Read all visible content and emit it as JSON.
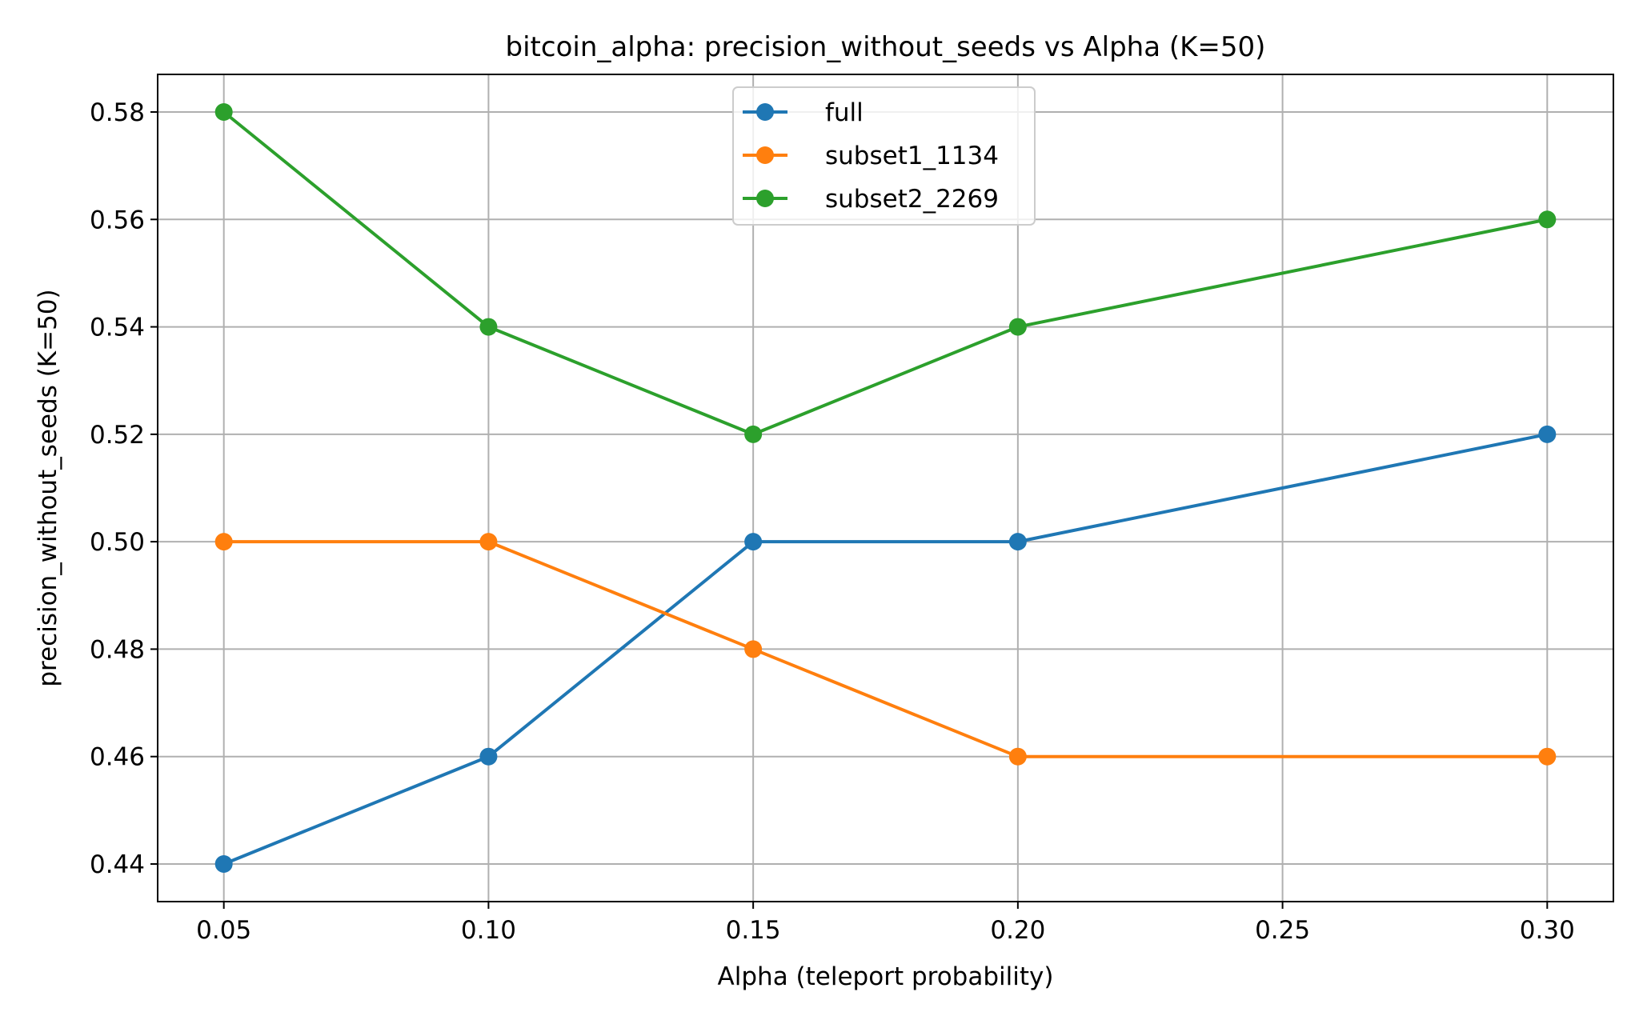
{
  "chart_data": {
    "type": "line",
    "title": "bitcoin_alpha: precision_without_seeds vs Alpha (K=50)",
    "xlabel": "Alpha (teleport probability)",
    "ylabel": "precision_without_seeds (K=50)",
    "x": [
      0.05,
      0.1,
      0.15,
      0.2,
      0.3
    ],
    "series": [
      {
        "name": "full",
        "color": "#1f77b4",
        "values": [
          0.44,
          0.46,
          0.5,
          0.5,
          0.52
        ]
      },
      {
        "name": "subset1_1134",
        "color": "#ff7f0e",
        "values": [
          0.5,
          0.5,
          0.48,
          0.46,
          0.46
        ]
      },
      {
        "name": "subset2_2269",
        "color": "#2ca02c",
        "values": [
          0.58,
          0.54,
          0.52,
          0.54,
          0.56
        ]
      }
    ],
    "xlim": [
      0.0375,
      0.3125
    ],
    "ylim": [
      0.433,
      0.587
    ],
    "xticks": [
      0.05,
      0.1,
      0.15,
      0.2,
      0.25,
      0.3
    ],
    "xtick_labels": [
      "0.05",
      "0.10",
      "0.15",
      "0.20",
      "0.25",
      "0.30"
    ],
    "yticks": [
      0.44,
      0.46,
      0.48,
      0.5,
      0.52,
      0.54,
      0.56,
      0.58
    ],
    "ytick_labels": [
      "0.44",
      "0.46",
      "0.48",
      "0.50",
      "0.52",
      "0.54",
      "0.56",
      "0.58"
    ],
    "grid": true,
    "legend_position": "upper-center"
  }
}
